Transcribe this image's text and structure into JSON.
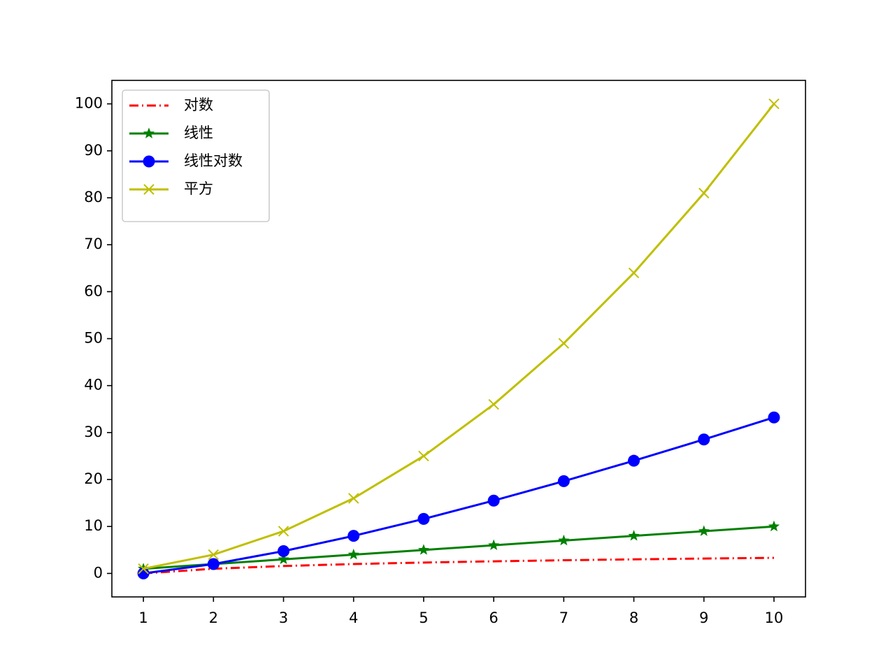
{
  "chart_data": {
    "type": "line",
    "x": [
      1,
      2,
      3,
      4,
      5,
      6,
      7,
      8,
      9,
      10
    ],
    "series": [
      {
        "name": "对数",
        "color": "#ff0000",
        "linestyle": "dashdot",
        "marker": "none",
        "values": [
          0,
          1,
          1.58,
          2,
          2.32,
          2.58,
          2.81,
          3,
          3.17,
          3.32
        ]
      },
      {
        "name": "线性",
        "color": "#008000",
        "linestyle": "solid",
        "marker": "star",
        "values": [
          1,
          2,
          3,
          4,
          5,
          6,
          7,
          8,
          9,
          10
        ]
      },
      {
        "name": "线性对数",
        "color": "#0000ff",
        "linestyle": "solid",
        "marker": "circle",
        "values": [
          0,
          2,
          4.75,
          8,
          11.61,
          15.51,
          19.65,
          24,
          28.53,
          33.22
        ]
      },
      {
        "name": "平方",
        "color": "#bfbf00",
        "linestyle": "solid",
        "marker": "x",
        "values": [
          1,
          4,
          9,
          16,
          25,
          36,
          49,
          64,
          81,
          100
        ]
      }
    ],
    "xlim": [
      0.55,
      10.45
    ],
    "ylim": [
      -5,
      105
    ],
    "xticks": [
      1,
      2,
      3,
      4,
      5,
      6,
      7,
      8,
      9,
      10
    ],
    "yticks": [
      0,
      10,
      20,
      30,
      40,
      50,
      60,
      70,
      80,
      90,
      100
    ],
    "legend": "upper left",
    "grid": false
  }
}
